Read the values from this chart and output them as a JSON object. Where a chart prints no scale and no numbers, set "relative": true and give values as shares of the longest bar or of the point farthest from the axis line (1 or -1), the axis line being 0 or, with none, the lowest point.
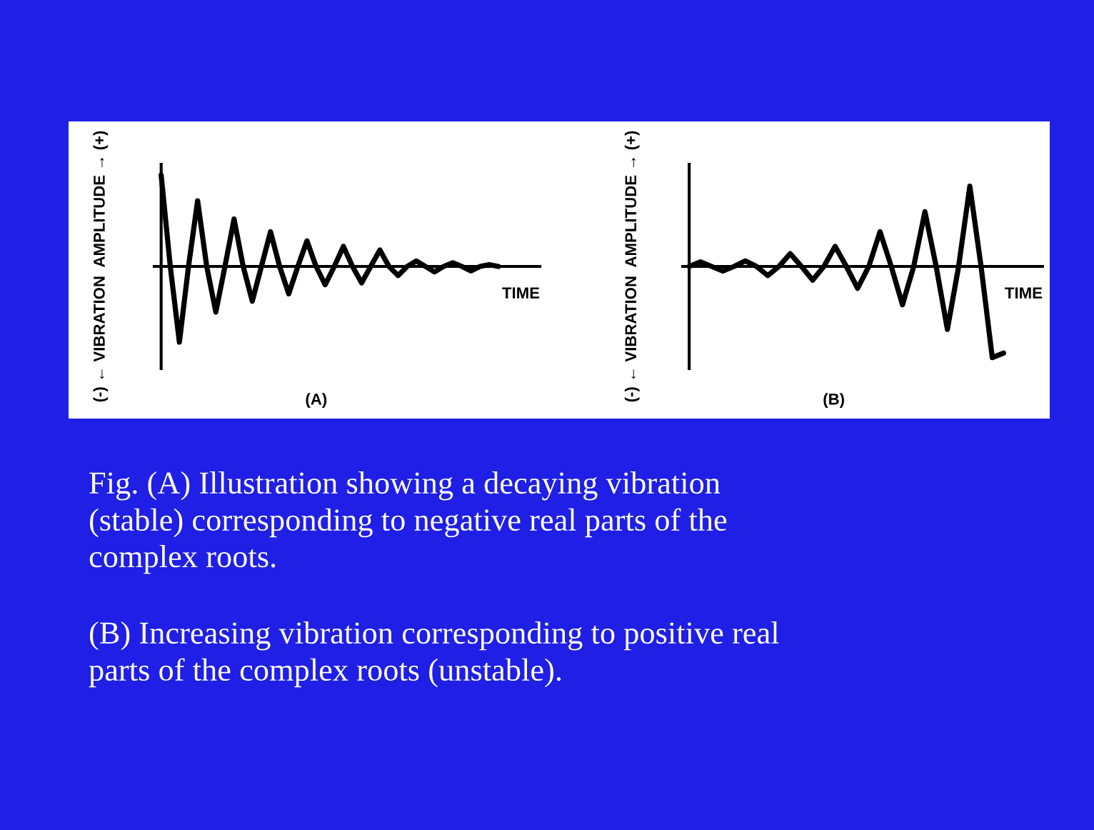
{
  "chart_data": [
    {
      "type": "line",
      "relative": true,
      "ylabel": "(-) ← VIBRATION  AMPLITUDE → (+)",
      "xlabel": "TIME",
      "title": "(A)",
      "categories": [
        null,
        null,
        null,
        null,
        null,
        null,
        null,
        null,
        null,
        null,
        null,
        null,
        null,
        null,
        null,
        null,
        null,
        null,
        null,
        null,
        null,
        null,
        null,
        null,
        null,
        null,
        null,
        null,
        null,
        null,
        null,
        null,
        null,
        null,
        null,
        null,
        null,
        null
      ],
      "series": [
        {
          "color": "#000000",
          "values": [
            1.0,
            0,
            -0.83,
            0,
            0.72,
            0,
            -0.5,
            0,
            0.52,
            0,
            -0.38,
            0,
            0.38,
            0,
            -0.3,
            0,
            0.28,
            0,
            -0.2,
            0,
            0.22,
            0,
            -0.18,
            0,
            0.18,
            0,
            -0.1,
            0,
            0.06,
            0,
            -0.06,
            0,
            0.04,
            0,
            -0.05,
            0,
            0.02,
            0
          ]
        }
      ],
      "annotations": [
        "Fig. (A) Illustration showing a decaying vibration\n(stable) corresponding to negative real parts of the\ncomplex roots.",
        "(B) Increasing vibration corresponding to positive real\nparts of the complex roots (unstable)."
      ]
    },
    {
      "type": "line",
      "relative": true,
      "ylabel": "(-) ← VIBRATION  AMPLITUDE → (+)",
      "xlabel": "TIME",
      "title": "(B)",
      "categories": [
        null,
        null,
        null,
        null,
        null,
        null,
        null,
        null,
        null,
        null,
        null,
        null,
        null,
        null,
        null,
        null,
        null,
        null,
        null,
        null,
        null,
        null,
        null,
        null,
        null,
        null,
        null,
        null,
        null
      ],
      "series": [
        {
          "color": "#000000",
          "values": [
            0,
            0.05,
            0,
            -0.05,
            0,
            0.06,
            0,
            -0.1,
            0,
            0.14,
            0,
            -0.15,
            0,
            0.22,
            0,
            -0.24,
            0,
            0.38,
            0,
            -0.42,
            0,
            0.6,
            0,
            -0.69,
            0,
            0.88,
            0,
            -1.0,
            -0.95
          ]
        }
      ]
    }
  ]
}
